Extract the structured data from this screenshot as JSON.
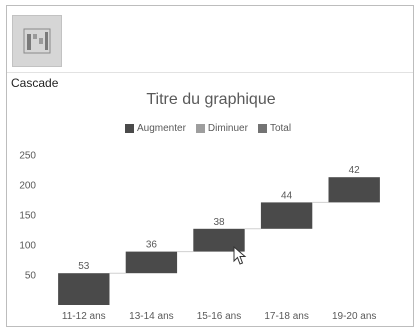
{
  "panel": {
    "icon": "waterfall-chart-icon",
    "label": "Cascade"
  },
  "colors": {
    "increase": "#4a4a4a",
    "decrease": "#9e9e9e",
    "total": "#737373",
    "axis_text": "#595959",
    "connector": "#d0d0d0"
  },
  "chart_data": {
    "type": "waterfall",
    "title": "Titre du graphique",
    "legend": [
      "Augmenter",
      "Diminuer",
      "Total"
    ],
    "legend_position": "top",
    "categories": [
      "11-12 ans",
      "13-14 ans",
      "15-16 ans",
      "17-18 ans",
      "19-20 ans"
    ],
    "values": [
      53,
      36,
      38,
      44,
      42
    ],
    "data_labels": [
      "53",
      "36",
      "38",
      "44",
      "42"
    ],
    "yticks": [
      "250",
      "200",
      "150",
      "100",
      "50"
    ],
    "ylim": [
      0,
      250
    ],
    "grid": false
  }
}
